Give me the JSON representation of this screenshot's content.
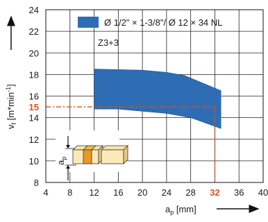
{
  "chart_data": {
    "type": "area",
    "title": "",
    "xlabel": {
      "main": "a",
      "sub": "p",
      "unit": " [mm]"
    },
    "ylabel": {
      "main": "v",
      "sub": "f",
      "unit": " [m*min",
      "exp": "-1",
      "close": "]"
    },
    "xlim": [
      4,
      40
    ],
    "ylim": [
      8,
      24
    ],
    "xticks": [
      4,
      8,
      12,
      16,
      20,
      24,
      28,
      32,
      36,
      40
    ],
    "yticks": [
      8,
      10,
      12,
      14,
      16,
      18,
      20,
      22,
      24
    ],
    "grid": true,
    "legend_position": "top-right",
    "series": [
      {
        "name": "Ø 1/2\" × 1-3/8\"/ Ø 12 × 34 NL",
        "color": "#2e6db4",
        "upper": [
          [
            12,
            18.5
          ],
          [
            20,
            18.4
          ],
          [
            24,
            18.2
          ],
          [
            27,
            17.9
          ],
          [
            30,
            17.2
          ],
          [
            33,
            16.5
          ]
        ],
        "lower": [
          [
            12,
            14.8
          ],
          [
            16,
            14.8
          ],
          [
            20,
            14.6
          ],
          [
            24,
            14.4
          ],
          [
            28,
            14.0
          ],
          [
            30,
            13.6
          ],
          [
            32,
            13.2
          ],
          [
            33,
            13.0
          ]
        ]
      }
    ],
    "annotations": {
      "zone_label": "Z3+3",
      "highlight": {
        "x": 32,
        "y": 15,
        "x_label": "32",
        "y_label": "15",
        "color": "#d4541c"
      },
      "tool_inset_label_main": "a",
      "tool_inset_label_sub": "p"
    }
  }
}
